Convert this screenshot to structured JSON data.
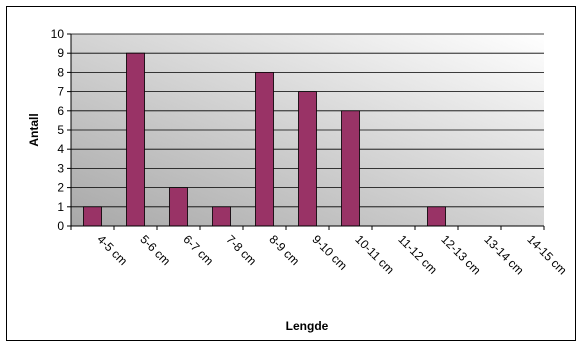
{
  "chart_data": {
    "type": "bar",
    "title": "",
    "xlabel": "Lengde",
    "ylabel": "Antall",
    "ylim": [
      0,
      10
    ],
    "yticks": [
      0,
      1,
      2,
      3,
      4,
      5,
      6,
      7,
      8,
      9,
      10
    ],
    "grid": true,
    "legend": "none",
    "categories": [
      "4-5 cm",
      "5-6 cm",
      "6-7 cm",
      "7-8 cm",
      "8-9 cm",
      "9-10 cm",
      "10-11 cm",
      "11-12 cm",
      "12-13 cm",
      "13-14 cm",
      "14-15 cm"
    ],
    "values": [
      1,
      9,
      2,
      1,
      8,
      7,
      6,
      0,
      1,
      0,
      0
    ],
    "colors": {
      "bar": "#993366",
      "grid": "#000000",
      "plot_gradient_start": "#a8a8a8",
      "plot_gradient_end": "#ffffff"
    }
  }
}
